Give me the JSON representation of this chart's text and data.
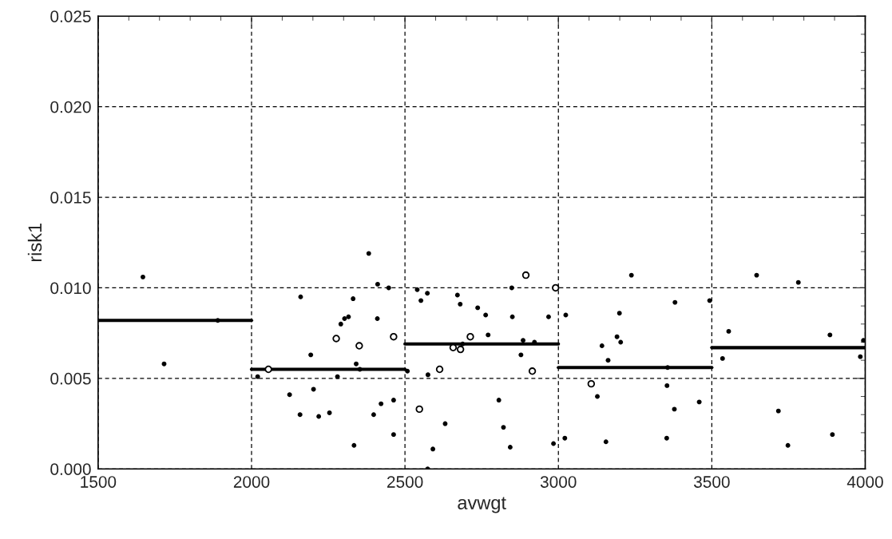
{
  "chart_data": {
    "type": "scatter",
    "xlabel": "avwgt",
    "ylabel": "risk1",
    "xlim": [
      1500,
      4000
    ],
    "xticks": [
      1500,
      2000,
      2500,
      3000,
      3500,
      4000
    ],
    "ylim": [
      0,
      0.025
    ],
    "yticks": [
      {
        "value": 0,
        "label": "0.000"
      },
      {
        "value": 0.005,
        "label": "0.005"
      },
      {
        "value": 0.01,
        "label": "0.010"
      },
      {
        "value": 0.015,
        "label": "0.015"
      },
      {
        "value": 0.02,
        "label": "0.020"
      },
      {
        "value": 0.025,
        "label": "0.025"
      }
    ],
    "grid": true,
    "line_style": "dashed",
    "marker": "circle",
    "series": [
      {
        "color": "#000000",
        "x": [
          1646,
          1715,
          1890,
          2160,
          2331,
          2316,
          2303,
          2291,
          2193,
          2341,
          2353,
          2020,
          2280,
          2202,
          2124,
          2158,
          2219,
          2254,
          2334,
          2382,
          2411,
          2447,
          2410,
          2398,
          2422,
          2463,
          2463,
          2540,
          2573,
          2552,
          2671,
          2680,
          2737,
          2763,
          2848,
          2850,
          2968,
          2771,
          2688,
          2885,
          2922,
          2878,
          2508,
          2575,
          2631,
          2806,
          2821,
          2843,
          2591,
          2574,
          2984,
          3024,
          3021,
          3142,
          3162,
          3127,
          3155,
          3238,
          3199,
          3191,
          3203,
          3380,
          3493,
          3356,
          3354,
          3378,
          3459,
          3353,
          3646,
          3782,
          3555,
          3535,
          3885,
          3994,
          3984,
          3717,
          3748,
          3893
        ],
        "values": [
          0.0106,
          0.0058,
          0.0082,
          0.0095,
          0.0094,
          0.0084,
          0.0083,
          0.008,
          0.0063,
          0.0058,
          0.0055,
          0.0051,
          0.0051,
          0.0044,
          0.0041,
          0.003,
          0.0029,
          0.0031,
          0.0013,
          0.0119,
          0.0102,
          0.01,
          0.0083,
          0.003,
          0.0036,
          0.0038,
          0.0019,
          0.0099,
          0.0097,
          0.0093,
          0.0096,
          0.0091,
          0.0089,
          0.0085,
          0.01,
          0.0084,
          0.0084,
          0.0074,
          0.0069,
          0.0071,
          0.007,
          0.0063,
          0.0054,
          0.0052,
          0.0025,
          0.0038,
          0.0023,
          0.0012,
          0.0011,
          0.0,
          0.0014,
          0.0085,
          0.0017,
          0.0068,
          0.006,
          0.004,
          0.0015,
          0.0107,
          0.0086,
          0.0073,
          0.007,
          0.0092,
          0.0093,
          0.0056,
          0.0046,
          0.0033,
          0.0037,
          0.0017,
          0.0107,
          0.0103,
          0.0076,
          0.0061,
          0.0074,
          0.0071,
          0.0062,
          0.0032,
          0.0013,
          0.0019
        ]
      },
      {
        "type": "bubble",
        "color": "#000000",
        "sizes": [
          1,
          1,
          1,
          1,
          1,
          1,
          1,
          1,
          1,
          1,
          1,
          1,
          1
        ],
        "x": [
          2276,
          2351,
          2055,
          2463,
          2894,
          2991,
          2713,
          2657,
          2681,
          2915,
          2613,
          2547,
          3107
        ],
        "values": [
          0.0072,
          0.0068,
          0.0055,
          0.0073,
          0.0107,
          0.01,
          0.0073,
          0.0067,
          0.0066,
          0.0054,
          0.0055,
          0.0033,
          0.0047
        ]
      },
      {
        "type": "line",
        "marker": "none",
        "line_style": "solid",
        "color": "#000000",
        "x": [
          1500,
          2000
        ],
        "values": [
          0.0082,
          0.0082
        ]
      },
      {
        "type": "line",
        "marker": "none",
        "line_style": "solid",
        "color": "#000000",
        "x": [
          2000,
          2500
        ],
        "values": [
          0.0055,
          0.0055
        ]
      },
      {
        "type": "line",
        "marker": "none",
        "line_style": "solid",
        "color": "#000000",
        "x": [
          2500,
          3000
        ],
        "values": [
          0.0069,
          0.0069
        ]
      },
      {
        "type": "line",
        "marker": "none",
        "line_style": "solid",
        "color": "#000000",
        "x": [
          3000,
          3500
        ],
        "values": [
          0.0056,
          0.0056
        ]
      },
      {
        "type": "line",
        "marker": "none",
        "line_style": "solid",
        "color": "#000000",
        "x": [
          3500,
          4000
        ],
        "values": [
          0.0067,
          0.0067
        ]
      }
    ]
  }
}
